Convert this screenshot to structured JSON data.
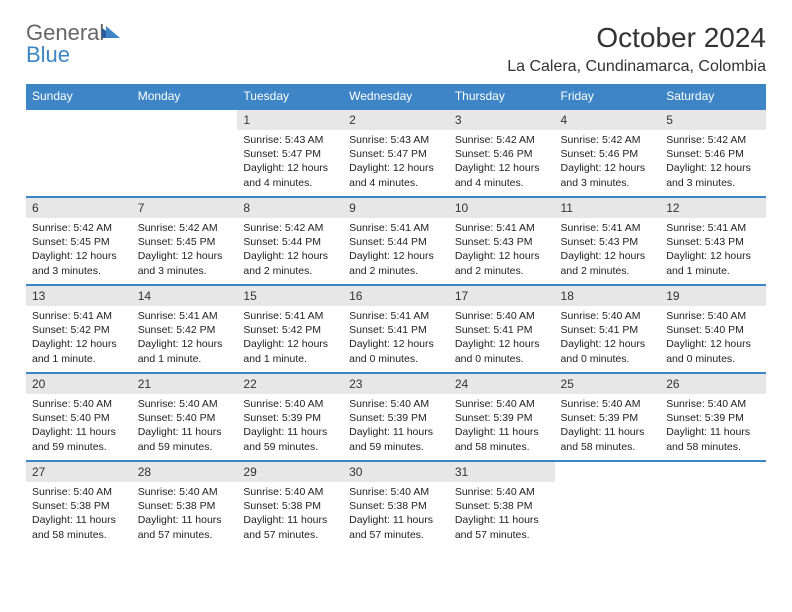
{
  "brand": {
    "name1": "General",
    "name2": "Blue"
  },
  "title": "October 2024",
  "location": "La Calera, Cundinamarca, Colombia",
  "colors": {
    "header_bg": "#3d85c6",
    "header_text": "#ffffff",
    "daynum_bg": "#e7e7e7",
    "row_border": "#3d85c6",
    "page_bg": "#ffffff",
    "text": "#222222",
    "logo_gray": "#666666",
    "logo_blue": "#3d85c6"
  },
  "weekdays": [
    "Sunday",
    "Monday",
    "Tuesday",
    "Wednesday",
    "Thursday",
    "Friday",
    "Saturday"
  ],
  "weeks": [
    [
      null,
      null,
      {
        "n": "1",
        "sr": "5:43 AM",
        "ss": "5:47 PM",
        "dl": "12 hours and 4 minutes."
      },
      {
        "n": "2",
        "sr": "5:43 AM",
        "ss": "5:47 PM",
        "dl": "12 hours and 4 minutes."
      },
      {
        "n": "3",
        "sr": "5:42 AM",
        "ss": "5:46 PM",
        "dl": "12 hours and 4 minutes."
      },
      {
        "n": "4",
        "sr": "5:42 AM",
        "ss": "5:46 PM",
        "dl": "12 hours and 3 minutes."
      },
      {
        "n": "5",
        "sr": "5:42 AM",
        "ss": "5:46 PM",
        "dl": "12 hours and 3 minutes."
      }
    ],
    [
      {
        "n": "6",
        "sr": "5:42 AM",
        "ss": "5:45 PM",
        "dl": "12 hours and 3 minutes."
      },
      {
        "n": "7",
        "sr": "5:42 AM",
        "ss": "5:45 PM",
        "dl": "12 hours and 3 minutes."
      },
      {
        "n": "8",
        "sr": "5:42 AM",
        "ss": "5:44 PM",
        "dl": "12 hours and 2 minutes."
      },
      {
        "n": "9",
        "sr": "5:41 AM",
        "ss": "5:44 PM",
        "dl": "12 hours and 2 minutes."
      },
      {
        "n": "10",
        "sr": "5:41 AM",
        "ss": "5:43 PM",
        "dl": "12 hours and 2 minutes."
      },
      {
        "n": "11",
        "sr": "5:41 AM",
        "ss": "5:43 PM",
        "dl": "12 hours and 2 minutes."
      },
      {
        "n": "12",
        "sr": "5:41 AM",
        "ss": "5:43 PM",
        "dl": "12 hours and 1 minute."
      }
    ],
    [
      {
        "n": "13",
        "sr": "5:41 AM",
        "ss": "5:42 PM",
        "dl": "12 hours and 1 minute."
      },
      {
        "n": "14",
        "sr": "5:41 AM",
        "ss": "5:42 PM",
        "dl": "12 hours and 1 minute."
      },
      {
        "n": "15",
        "sr": "5:41 AM",
        "ss": "5:42 PM",
        "dl": "12 hours and 1 minute."
      },
      {
        "n": "16",
        "sr": "5:41 AM",
        "ss": "5:41 PM",
        "dl": "12 hours and 0 minutes."
      },
      {
        "n": "17",
        "sr": "5:40 AM",
        "ss": "5:41 PM",
        "dl": "12 hours and 0 minutes."
      },
      {
        "n": "18",
        "sr": "5:40 AM",
        "ss": "5:41 PM",
        "dl": "12 hours and 0 minutes."
      },
      {
        "n": "19",
        "sr": "5:40 AM",
        "ss": "5:40 PM",
        "dl": "12 hours and 0 minutes."
      }
    ],
    [
      {
        "n": "20",
        "sr": "5:40 AM",
        "ss": "5:40 PM",
        "dl": "11 hours and 59 minutes."
      },
      {
        "n": "21",
        "sr": "5:40 AM",
        "ss": "5:40 PM",
        "dl": "11 hours and 59 minutes."
      },
      {
        "n": "22",
        "sr": "5:40 AM",
        "ss": "5:39 PM",
        "dl": "11 hours and 59 minutes."
      },
      {
        "n": "23",
        "sr": "5:40 AM",
        "ss": "5:39 PM",
        "dl": "11 hours and 59 minutes."
      },
      {
        "n": "24",
        "sr": "5:40 AM",
        "ss": "5:39 PM",
        "dl": "11 hours and 58 minutes."
      },
      {
        "n": "25",
        "sr": "5:40 AM",
        "ss": "5:39 PM",
        "dl": "11 hours and 58 minutes."
      },
      {
        "n": "26",
        "sr": "5:40 AM",
        "ss": "5:39 PM",
        "dl": "11 hours and 58 minutes."
      }
    ],
    [
      {
        "n": "27",
        "sr": "5:40 AM",
        "ss": "5:38 PM",
        "dl": "11 hours and 58 minutes."
      },
      {
        "n": "28",
        "sr": "5:40 AM",
        "ss": "5:38 PM",
        "dl": "11 hours and 57 minutes."
      },
      {
        "n": "29",
        "sr": "5:40 AM",
        "ss": "5:38 PM",
        "dl": "11 hours and 57 minutes."
      },
      {
        "n": "30",
        "sr": "5:40 AM",
        "ss": "5:38 PM",
        "dl": "11 hours and 57 minutes."
      },
      {
        "n": "31",
        "sr": "5:40 AM",
        "ss": "5:38 PM",
        "dl": "11 hours and 57 minutes."
      },
      null,
      null
    ]
  ],
  "labels": {
    "sunrise": "Sunrise:",
    "sunset": "Sunset:",
    "daylight": "Daylight:"
  }
}
